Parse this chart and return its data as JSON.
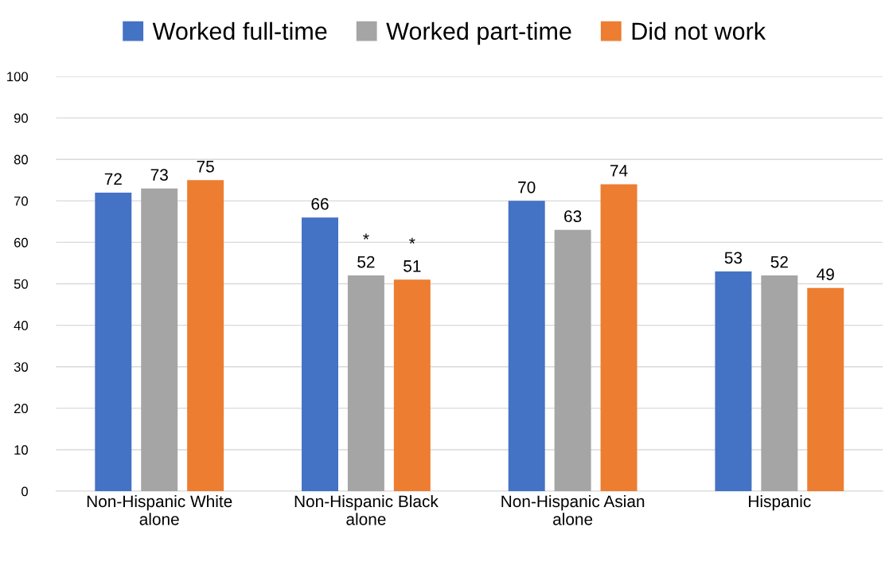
{
  "chart_data": {
    "type": "bar",
    "categories": [
      "Non-Hispanic White\nalone",
      "Non-Hispanic Black\nalone",
      "Non-Hispanic Asian\nalone",
      "Hispanic"
    ],
    "series": [
      {
        "name": "Worked full-time",
        "color": "#4472c4",
        "values": [
          72,
          66,
          70,
          53
        ],
        "value_labels": [
          "72",
          "66",
          "70",
          "53"
        ]
      },
      {
        "name": "Worked part-time",
        "color": "#a5a5a5",
        "values": [
          73,
          52,
          63,
          52
        ],
        "value_labels": [
          "73",
          "*\n52",
          "63",
          "52"
        ]
      },
      {
        "name": "Did not work",
        "color": "#ed7d31",
        "values": [
          75,
          51,
          74,
          49
        ],
        "value_labels": [
          "75",
          "*\n51",
          "74",
          "49"
        ]
      }
    ],
    "ylim": [
      0,
      100
    ],
    "yticks": [
      0,
      10,
      20,
      30,
      40,
      50,
      60,
      70,
      80,
      90,
      100
    ],
    "grid": "y",
    "legend": "top"
  }
}
